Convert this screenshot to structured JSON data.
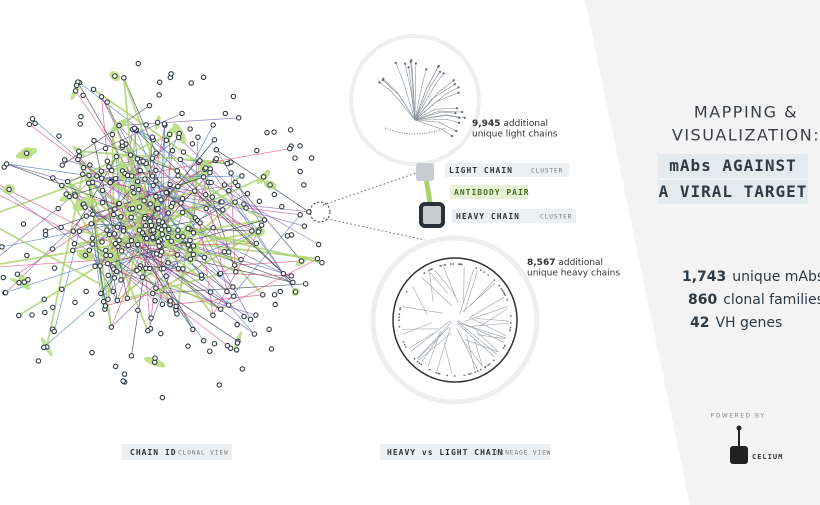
{
  "light_chain_note": {
    "count": "9,945",
    "text": "additional",
    "text2": "unique light chains"
  },
  "legend": {
    "light_chain": "LIGHT CHAIN",
    "light_chain_tag": "CLUSTER",
    "pair": "ANTIBODY PAIR",
    "heavy_chain": "HEAVY CHAIN",
    "heavy_chain_tag": "CLUSTER"
  },
  "heavy_chain_note": {
    "count": "8,567",
    "text": "additional",
    "text2": "unique heavy chains"
  },
  "captions": {
    "left": "CHAIN ID",
    "left_tag": "CLONAL VIEW",
    "right": "HEAVY vs LIGHT CHAIN",
    "right_tag": "LINEAGE VIEW"
  },
  "sidebar": {
    "title1": "MAPPING &",
    "title2": "VISUALIZATION:",
    "subtitle1": "mAbs AGAINST",
    "subtitle2": "A VIRAL TARGET",
    "stats": [
      {
        "number": "1,743",
        "label": "unique mAbs"
      },
      {
        "number": "860",
        "label": "clonal families"
      },
      {
        "number": "42",
        "label": "VH genes"
      }
    ],
    "powered_by": "POWERED BY",
    "brand": "CELIUM"
  }
}
